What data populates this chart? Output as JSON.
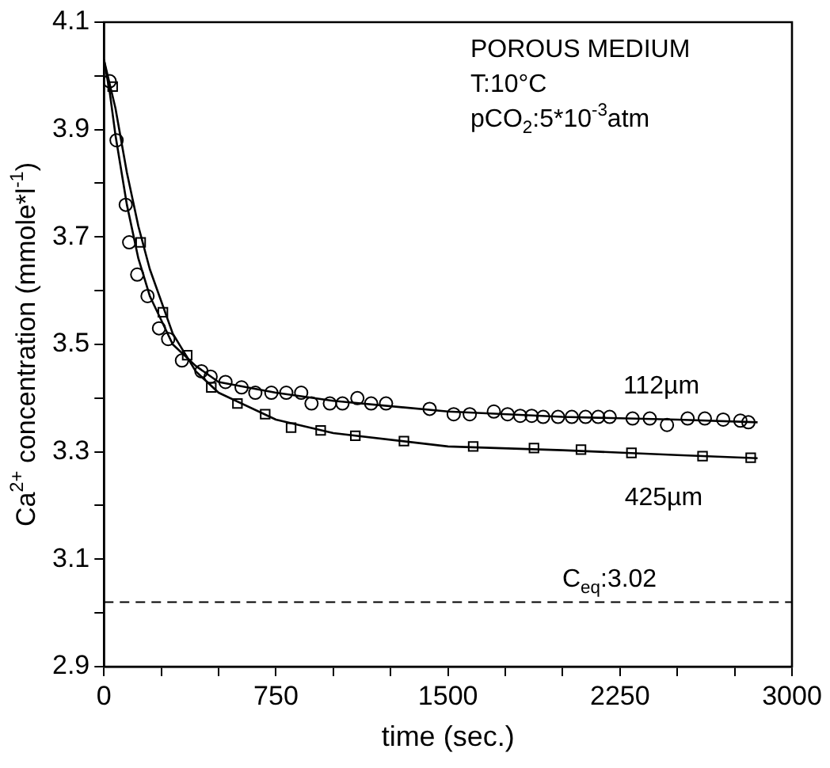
{
  "chart_data": {
    "type": "scatter",
    "xlabel": "time (sec.)",
    "ylabel": "Ca$^{2+}$ concentration (mmole*l$^{-1}$)",
    "xlim": [
      0,
      3000
    ],
    "ylim": [
      2.9,
      4.1
    ],
    "xticks": [
      0,
      {
        "value": 250,
        "label": null
      },
      {
        "value": 500,
        "label": null
      },
      750,
      {
        "value": 1000,
        "label": null
      },
      {
        "value": 1250,
        "label": null
      },
      1500,
      {
        "value": 1750,
        "label": null
      },
      {
        "value": 2000,
        "label": null
      },
      2250,
      {
        "value": 2500,
        "label": null
      },
      {
        "value": 2750,
        "label": null
      },
      3000
    ],
    "yticks": [
      2.9,
      {
        "value": 3.0,
        "label": null
      },
      3.1,
      {
        "value": 3.2,
        "label": null
      },
      3.3,
      {
        "value": 3.4,
        "label": null
      },
      3.5,
      {
        "value": 3.6,
        "label": null
      },
      3.7,
      {
        "value": 3.8,
        "label": null
      },
      3.9,
      {
        "value": 4.0,
        "label": null
      },
      4.1
    ],
    "grid": false,
    "legend": false,
    "annotations": [
      "POROUS MEDIUM",
      "T:10°C",
      "pCO$_{2}$:5*10$^{-3}$atm"
    ],
    "ref_lines": [
      {
        "axis": "y",
        "value": 3.02,
        "label": "C$_{eq}$:3.02",
        "color": "#000000",
        "line_style": "dashed"
      }
    ],
    "series": [
      {
        "name": "112µm",
        "type": "scatter",
        "marker": "circle",
        "color": "#000000",
        "x": [
          25,
          55,
          95,
          110,
          145,
          190,
          240,
          280,
          340,
          425,
          465,
          530,
          600,
          660,
          730,
          795,
          860,
          905,
          985,
          1040,
          1105,
          1165,
          1230,
          1420,
          1525,
          1595,
          1700,
          1760,
          1815,
          1865,
          1915,
          1980,
          2040,
          2100,
          2155,
          2205,
          2305,
          2380,
          2455,
          2545,
          2620,
          2700,
          2775,
          2810
        ],
        "values": [
          3.99,
          3.88,
          3.76,
          3.69,
          3.63,
          3.59,
          3.53,
          3.51,
          3.47,
          3.45,
          3.44,
          3.43,
          3.42,
          3.41,
          3.41,
          3.41,
          3.41,
          3.39,
          3.39,
          3.39,
          3.4,
          3.39,
          3.39,
          3.38,
          3.37,
          3.37,
          3.375,
          3.37,
          3.367,
          3.367,
          3.365,
          3.365,
          3.365,
          3.365,
          3.365,
          3.365,
          3.362,
          3.362,
          3.35,
          3.362,
          3.362,
          3.36,
          3.358,
          3.355
        ]
      },
      {
        "name": "425µm",
        "type": "scatter",
        "marker": "square",
        "color": "#000000",
        "x": [
          38,
          160,
          257,
          363,
          468,
          582,
          703,
          816,
          945,
          1096,
          1308,
          1610,
          1875,
          2080,
          2300,
          2610,
          2820
        ],
        "values": [
          3.98,
          3.69,
          3.56,
          3.48,
          3.42,
          3.39,
          3.37,
          3.345,
          3.34,
          3.33,
          3.32,
          3.31,
          3.307,
          3.304,
          3.298,
          3.292,
          3.289
        ]
      },
      {
        "type": "line",
        "marker": "none",
        "color": "#000000",
        "x": [
          0,
          25,
          50,
          100,
          150,
          200,
          300,
          400,
          500,
          750,
          1000,
          1500,
          2000,
          2500,
          2850
        ],
        "values": [
          4.03,
          3.97,
          3.89,
          3.76,
          3.66,
          3.59,
          3.5,
          3.46,
          3.43,
          3.41,
          3.395,
          3.375,
          3.365,
          3.36,
          3.355
        ]
      },
      {
        "type": "line",
        "marker": "none",
        "color": "#000000",
        "x": [
          0,
          50,
          100,
          150,
          200,
          300,
          400,
          500,
          750,
          1000,
          1500,
          2000,
          2500,
          2850
        ],
        "values": [
          4.03,
          3.94,
          3.82,
          3.72,
          3.64,
          3.52,
          3.45,
          3.41,
          3.36,
          3.335,
          3.31,
          3.303,
          3.294,
          3.288
        ]
      }
    ]
  }
}
